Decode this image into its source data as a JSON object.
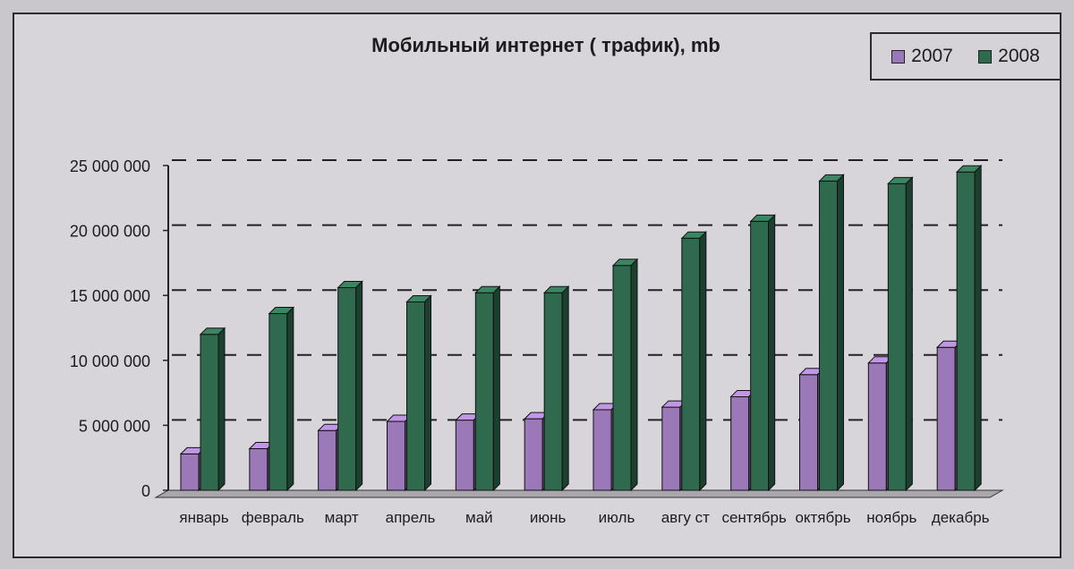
{
  "chart_data": {
    "type": "bar",
    "title": "Мобильный интернет ( трафик), mb",
    "xlabel": "",
    "ylabel": "",
    "ylim": [
      0,
      25000000
    ],
    "yticks": [
      0,
      5000000,
      10000000,
      15000000,
      20000000,
      25000000
    ],
    "ytick_labels": [
      "0",
      "5 000 000",
      "10 000 000",
      "15 000 000",
      "20 000 000",
      "25 000 000"
    ],
    "grid": true,
    "legend_position": "top-right",
    "categories": [
      "январь",
      "февраль",
      "март",
      "апрель",
      "май",
      "июнь",
      "июль",
      "авгу ст",
      "сентябрь",
      "октябрь",
      "ноябрь",
      "декабрь"
    ],
    "series": [
      {
        "name": "2007",
        "color": "#9b78b8",
        "values": [
          2800000,
          3200000,
          4600000,
          5300000,
          5400000,
          5500000,
          6200000,
          6400000,
          7200000,
          8900000,
          9800000,
          11000000
        ]
      },
      {
        "name": "2008",
        "color": "#2f6a4e",
        "values": [
          12000000,
          13600000,
          15600000,
          14500000,
          15200000,
          15200000,
          17300000,
          19400000,
          20700000,
          23800000,
          23600000,
          24500000
        ]
      }
    ]
  }
}
